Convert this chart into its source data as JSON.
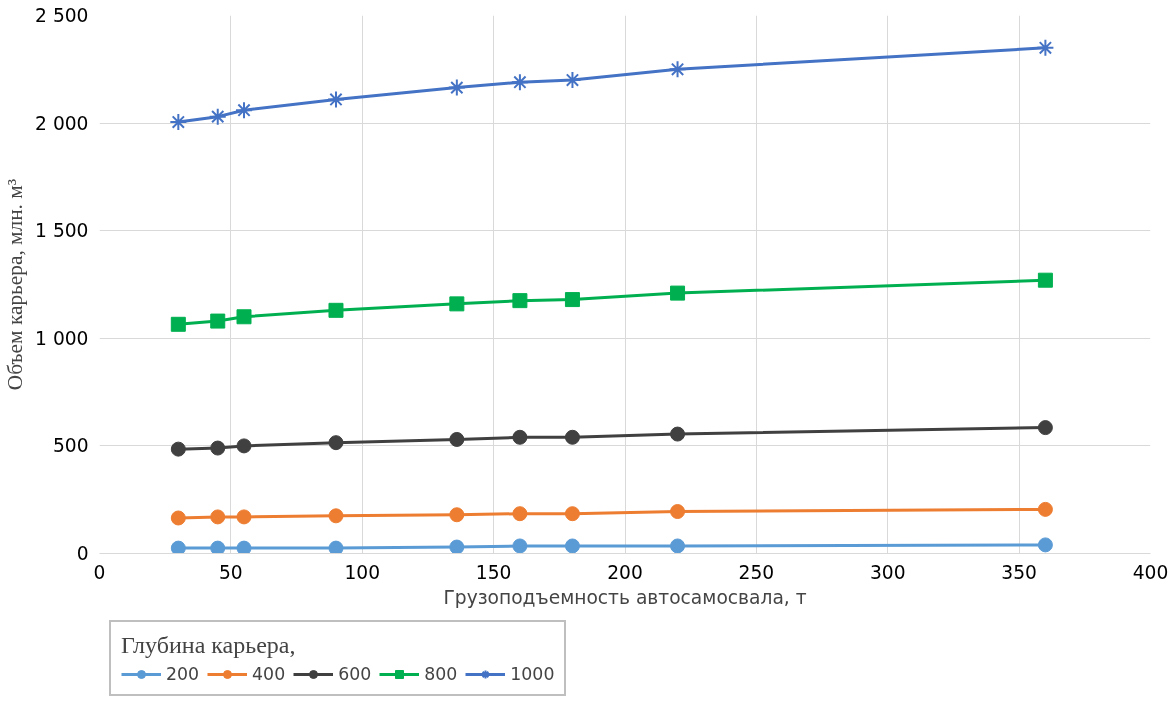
{
  "chart_data": {
    "type": "line",
    "xlabel": "Грузоподъемность автосамосвала, т",
    "ylabel": "Объем карьера, млн. м³",
    "legend_title": "Глубина карьера,",
    "legend": "bottom",
    "grid": true,
    "line_style": "solid",
    "x": [
      30,
      45,
      55,
      90,
      136,
      160,
      180,
      220,
      360
    ],
    "xlim": [
      0,
      400
    ],
    "xticks": [
      0,
      50,
      100,
      150,
      200,
      250,
      300,
      350,
      400
    ],
    "ylim": [
      0,
      2500
    ],
    "yticks": [
      0,
      500,
      {
        "value": 1000,
        "label": "1 000"
      },
      {
        "value": 1500,
        "label": "1 500"
      },
      {
        "value": 2000,
        "label": "2 000"
      },
      {
        "value": 2500,
        "label": "2 500"
      }
    ],
    "series": [
      {
        "name": "200",
        "color": "#5b9bd5",
        "marker": "circle",
        "values": [
          25,
          25,
          25,
          25,
          30,
          35,
          35,
          35,
          40
        ]
      },
      {
        "name": "400",
        "color": "#ed7d31",
        "marker": "circle",
        "values": [
          165,
          170,
          170,
          175,
          180,
          185,
          185,
          195,
          205
        ]
      },
      {
        "name": "600",
        "color": "#404040",
        "marker": "circle",
        "values": [
          485,
          490,
          500,
          515,
          530,
          540,
          540,
          555,
          585
        ]
      },
      {
        "name": "800",
        "color": "#00b050",
        "marker": "square",
        "values": [
          1065,
          1080,
          1100,
          1130,
          1160,
          1175,
          1180,
          1210,
          1270
        ]
      },
      {
        "name": "1000",
        "color": "#4472c4",
        "marker": "cross",
        "values": [
          2005,
          2030,
          2060,
          2110,
          2165,
          2190,
          2200,
          2250,
          2350
        ]
      }
    ]
  }
}
